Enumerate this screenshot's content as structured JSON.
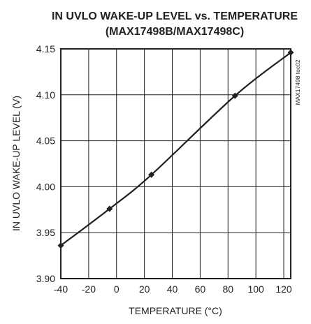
{
  "chart_data": {
    "type": "line",
    "title": "IN UVLO WAKE-UP LEVEL vs. TEMPERATURE",
    "subtitle": "(MAX17498B/MAX17498C)",
    "xlabel": "TEMPERATURE (°C)",
    "ylabel": "IN UVLO WAKE-UP LEVEL (V)",
    "figure_id": "MAX17498 toc02",
    "xlim": [
      -40,
      125
    ],
    "ylim": [
      3.9,
      4.15
    ],
    "x_ticks": [
      -40,
      -20,
      0,
      20,
      40,
      60,
      80,
      100,
      120
    ],
    "x_tick_labels": [
      "-40",
      "-20",
      "0",
      "20",
      "40",
      "60",
      "80",
      "100",
      "120"
    ],
    "y_ticks": [
      3.9,
      3.95,
      4.0,
      4.05,
      4.1,
      4.15
    ],
    "y_tick_labels": [
      "3.90",
      "3.95",
      "4.00",
      "4.05",
      "4.10",
      "4.15"
    ],
    "grid": true,
    "legend": "none",
    "series": [
      {
        "x": [
          -40,
          -5,
          25,
          85,
          125
        ],
        "y": [
          3.936,
          3.976,
          4.013,
          4.099,
          4.146
        ],
        "marker": "diamond"
      }
    ],
    "colors": {
      "line": "#231f20",
      "grid": "#231f20"
    }
  }
}
